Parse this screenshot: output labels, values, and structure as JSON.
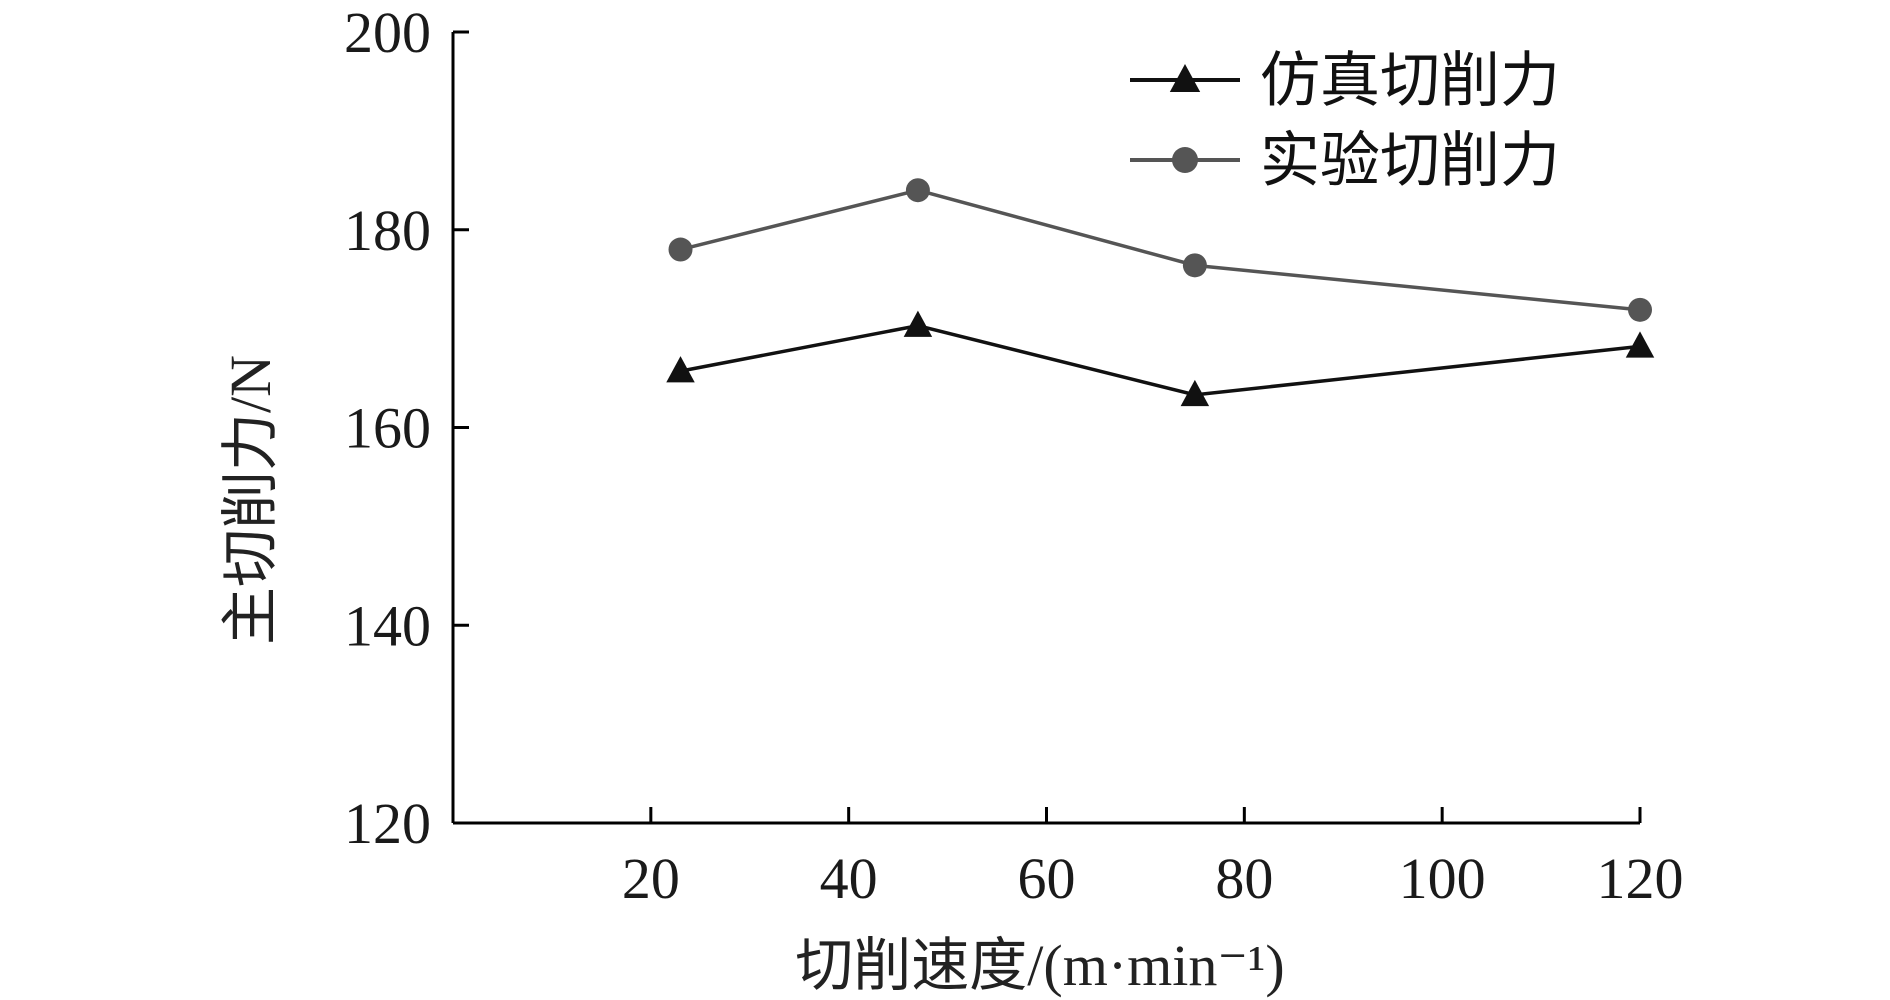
{
  "chart_data": {
    "type": "line",
    "xlabel": "切削速度/(m·min⁻¹)",
    "ylabel": "主切削力/N",
    "xlim": [
      0,
      120
    ],
    "ylim": [
      120,
      200
    ],
    "xticks": [
      20,
      40,
      60,
      80,
      100,
      120
    ],
    "yticks": [
      120,
      140,
      160,
      180,
      200
    ],
    "grid": false,
    "legend_position": "top-right",
    "series": [
      {
        "name": "仿真切削力",
        "marker": "triangle",
        "color": "#111111",
        "x": [
          23,
          47,
          75,
          120
        ],
        "y": [
          165.7,
          170.3,
          163.3,
          168.2
        ]
      },
      {
        "name": "实验切削力",
        "marker": "circle",
        "color": "#555555",
        "x": [
          23,
          47,
          75,
          120
        ],
        "y": [
          178.0,
          184.0,
          176.4,
          171.9
        ]
      }
    ]
  }
}
